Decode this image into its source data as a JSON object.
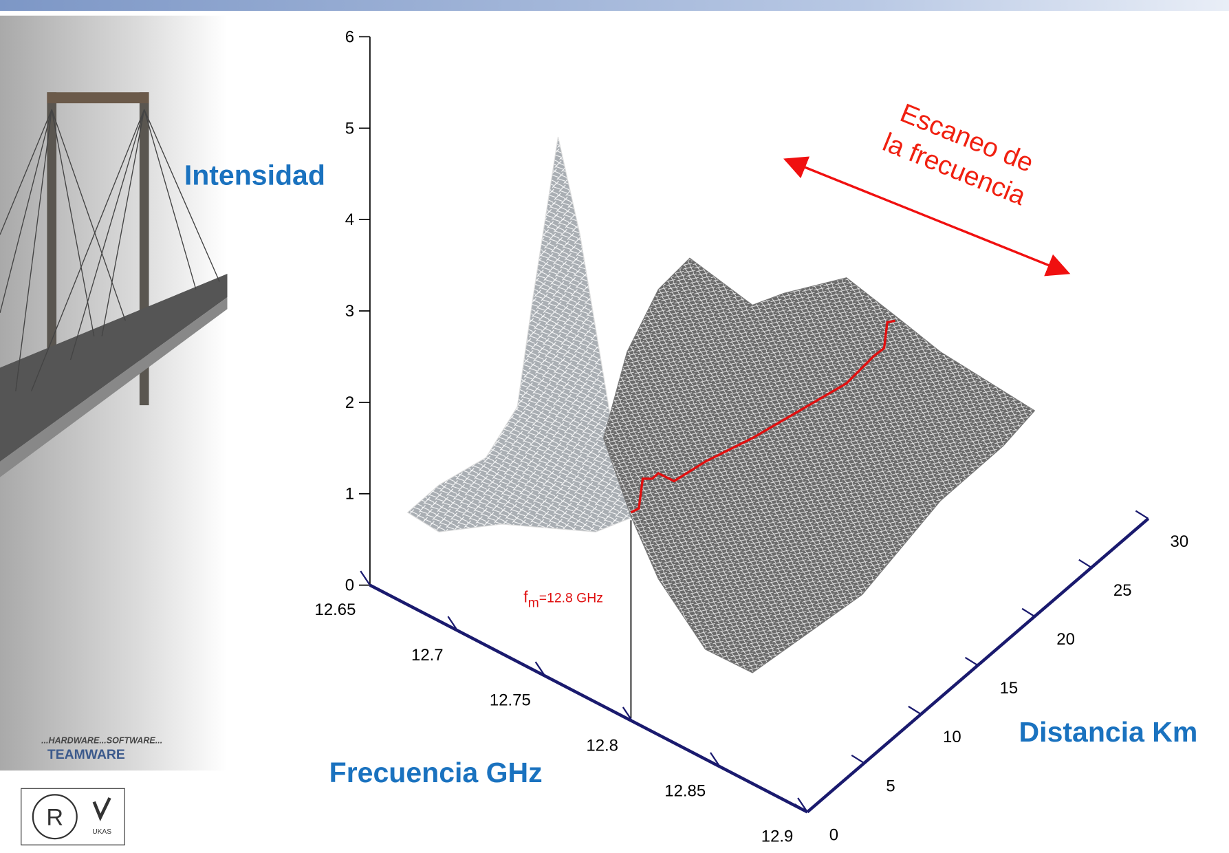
{
  "slide": {
    "z_axis": {
      "label": "Intensidad",
      "ticks": [
        "0",
        "1",
        "2",
        "3",
        "4",
        "5",
        "6"
      ]
    },
    "frequency_axis": {
      "label": "Frecuencia GHz",
      "ticks": [
        "12.65",
        "12.7",
        "12.75",
        "12.8",
        "12.85",
        "12.9"
      ]
    },
    "distance_axis": {
      "label": "Distancia Km",
      "ticks": [
        "0",
        "5",
        "10",
        "15",
        "20",
        "25",
        "30"
      ]
    },
    "scan_note": {
      "lines": [
        "Escaneo de",
        "la frecuencia"
      ]
    },
    "marker": {
      "symbol": "f",
      "subscript": "m",
      "text": "=12.8 GHz"
    },
    "logo": {
      "tagline": "...HARDWARE...SOFTWARE...",
      "name": "TEAMWARE"
    },
    "certification": {
      "badge": "UKAS"
    }
  }
}
